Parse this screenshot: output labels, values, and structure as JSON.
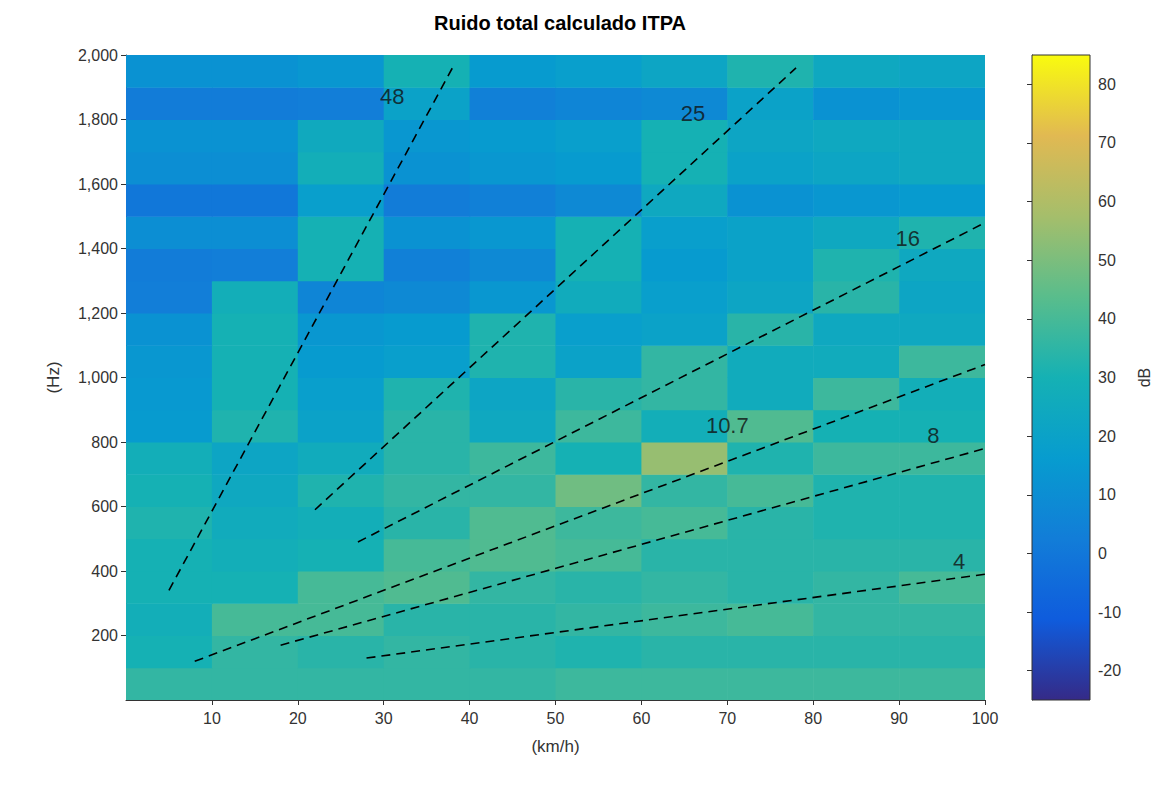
{
  "chart_data": {
    "type": "heatmap",
    "title": "Ruido total calculado ITPA",
    "x_label": "(km/h)",
    "y_label": "(Hz)",
    "xlim": [
      0,
      100
    ],
    "xticks": [
      10,
      20,
      30,
      40,
      50,
      60,
      70,
      80,
      90,
      100
    ],
    "ylim": [
      0,
      2000
    ],
    "yticks": [
      200,
      400,
      600,
      800,
      1000,
      1200,
      1400,
      1600,
      1800,
      2000
    ],
    "grid": false,
    "colorbar": {
      "label": "dB",
      "range": [
        -25,
        85
      ],
      "ticks": [
        -20,
        -10,
        0,
        10,
        20,
        30,
        40,
        50,
        60,
        70,
        80
      ]
    },
    "heatmap": {
      "x": [
        5,
        15,
        25,
        35,
        45,
        55,
        65,
        75,
        85,
        95
      ],
      "y": [
        50,
        150,
        250,
        350,
        450,
        550,
        650,
        750,
        850,
        950,
        1050,
        1150,
        1250,
        1350,
        1450,
        1550,
        1650,
        1750,
        1850,
        1950
      ],
      "values": [
        [
          36,
          36,
          36,
          36,
          36,
          38,
          38,
          38,
          38,
          38
        ],
        [
          30,
          36,
          34,
          36,
          34,
          32,
          34,
          34,
          34,
          34
        ],
        [
          28,
          40,
          40,
          34,
          34,
          36,
          38,
          40,
          36,
          36
        ],
        [
          30,
          30,
          40,
          42,
          36,
          34,
          36,
          34,
          36,
          40
        ],
        [
          30,
          28,
          30,
          40,
          42,
          40,
          34,
          34,
          34,
          34
        ],
        [
          32,
          26,
          28,
          34,
          42,
          38,
          40,
          34,
          32,
          32
        ],
        [
          30,
          24,
          32,
          36,
          36,
          48,
          36,
          40,
          32,
          32
        ],
        [
          28,
          22,
          26,
          34,
          38,
          30,
          55,
          32,
          38,
          38
        ],
        [
          16,
          32,
          20,
          34,
          24,
          38,
          28,
          42,
          30,
          30
        ],
        [
          15,
          30,
          18,
          32,
          22,
          34,
          36,
          26,
          38,
          28
        ],
        [
          14,
          30,
          16,
          18,
          32,
          20,
          36,
          26,
          26,
          38
        ],
        [
          12,
          30,
          14,
          16,
          32,
          18,
          20,
          34,
          24,
          24
        ],
        [
          3,
          28,
          6,
          8,
          14,
          26,
          18,
          22,
          34,
          22
        ],
        [
          2,
          3,
          30,
          4,
          8,
          30,
          16,
          20,
          32,
          24
        ],
        [
          10,
          10,
          30,
          12,
          14,
          30,
          18,
          20,
          24,
          32
        ],
        [
          0,
          0,
          18,
          2,
          4,
          8,
          24,
          12,
          14,
          16
        ],
        [
          10,
          10,
          28,
          12,
          14,
          16,
          30,
          20,
          22,
          24
        ],
        [
          12,
          12,
          25,
          14,
          16,
          18,
          30,
          22,
          24,
          24
        ],
        [
          2,
          2,
          3,
          20,
          4,
          6,
          8,
          20,
          12,
          14
        ],
        [
          12,
          12,
          14,
          30,
          16,
          18,
          22,
          32,
          24,
          22
        ]
      ]
    },
    "series": [
      {
        "name": "48",
        "type": "line",
        "line_style": "dashed",
        "color": "#000000",
        "x": [
          5,
          38
        ],
        "y": [
          340,
          1960
        ]
      },
      {
        "name": "25",
        "type": "line",
        "line_style": "dashed",
        "color": "#000000",
        "x": [
          22,
          78
        ],
        "y": [
          590,
          1960
        ]
      },
      {
        "name": "16",
        "type": "line",
        "line_style": "dashed",
        "color": "#000000",
        "x": [
          27,
          100
        ],
        "y": [
          490,
          1480
        ]
      },
      {
        "name": "10.7",
        "type": "line",
        "line_style": "dashed",
        "color": "#000000",
        "x": [
          8,
          100
        ],
        "y": [
          120,
          1040
        ]
      },
      {
        "name": "8",
        "type": "line",
        "line_style": "dashed",
        "color": "#000000",
        "x": [
          18,
          100
        ],
        "y": [
          170,
          780
        ]
      },
      {
        "name": "4",
        "type": "line",
        "line_style": "dashed",
        "color": "#000000",
        "x": [
          28,
          100
        ],
        "y": [
          130,
          390
        ]
      }
    ],
    "annotations": [
      {
        "text": "48",
        "x": 31,
        "y": 1870
      },
      {
        "text": "25",
        "x": 66,
        "y": 1820
      },
      {
        "text": "16",
        "x": 91,
        "y": 1430
      },
      {
        "text": "10.7",
        "x": 70,
        "y": 850
      },
      {
        "text": "8",
        "x": 94,
        "y": 820
      },
      {
        "text": "4",
        "x": 97,
        "y": 430
      }
    ]
  }
}
